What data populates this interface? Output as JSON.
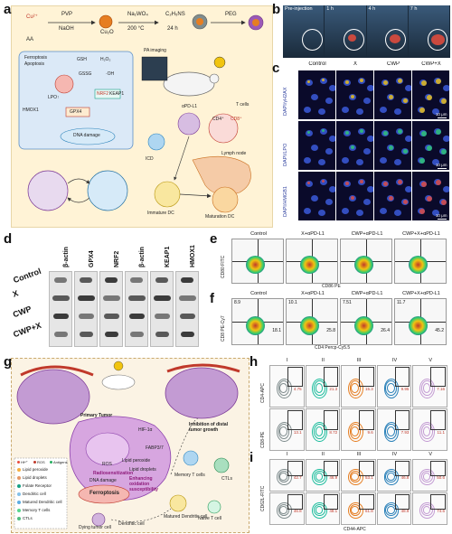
{
  "panels": {
    "a": {
      "letter": "a",
      "synthesis": {
        "cu": "Cu²⁺",
        "aa": "AA",
        "pvp": "PVP",
        "naoh": "NaOH",
        "cu2o": "Cu₂O",
        "nawo": "Na₂WO₄",
        "temp": "200 °C",
        "time": "24 h",
        "product": "C₂H₅NS",
        "peg": "PEG"
      },
      "pathway": {
        "ferro": "Ferroptosis",
        "apop": "Apoptosis",
        "gsh": "GSH",
        "h2o2": "H₂O₂",
        "gssg": "GSSG",
        "oh": "·OH",
        "lpo": "LPO↑",
        "hmox": "HMOX1",
        "nrf2": "NRF2",
        "keap": "KEAP1",
        "gpx4": "GPX4",
        "dna": "DNA damage"
      },
      "labels": {
        "pa": "PA imaging",
        "apdl1": "αPD-L1",
        "icd": "ICD",
        "tcells": "T cells",
        "ln": "Lymph node",
        "cd4": "CD4⁺",
        "cd8": "CD8⁺",
        "imm": "Immature DC",
        "mat": "Maturation DC",
        "naive": "Naive T cell"
      }
    },
    "b": {
      "letter": "b",
      "times": [
        "Pre-injection",
        "1 h",
        "4 h",
        "7 h"
      ]
    },
    "c": {
      "letter": "c",
      "cols": [
        "Control",
        "X",
        "CWP",
        "CWP+X"
      ],
      "rows": [
        "DAPI/γH2AX",
        "DAPI/LPO",
        "DAPI/HMGB1"
      ],
      "scale": "10 μm"
    },
    "d": {
      "letter": "d",
      "proteins": [
        "β-actin",
        "GPX4",
        "NRF2",
        "β-actin",
        "KEAP1",
        "HMOX1"
      ],
      "groups": [
        "Control",
        "X",
        "CWP",
        "CWP+X"
      ]
    },
    "e": {
      "letter": "e",
      "groups": [
        "Control",
        "X+αPD-L1",
        "CWP+αPD-L1",
        "CWP+X+αPD-L1"
      ],
      "ylabel": "CD80 FITC",
      "xlabel": "CD86 PE"
    },
    "f": {
      "letter": "f",
      "groups": [
        "Control",
        "X+αPD-L1",
        "CWP+αPD-L1",
        "CWP+X+αPD-L1"
      ],
      "ylabel": "CD8 PE-Cy7",
      "xlabel": "CD4 Percp-Cy5.5",
      "q_upper": [
        "8.9",
        "10.1",
        "7.51",
        "11.7"
      ],
      "q_lower": [
        "18.1",
        "25.8",
        "26.4",
        "45.2"
      ]
    },
    "g": {
      "letter": "g",
      "labels": {
        "primary": "Primary Tumor",
        "inhibit": "Inhibition of distal tumor growth",
        "radio": "Radiosensitization",
        "enh": "Enhancing oxidation susceptibility",
        "dna": "DNA damage",
        "ros": "ROS",
        "lp": "Lipid peroxide",
        "ld": "Lipid droplets",
        "ferro": "Ferroptosis",
        "hif": "HIF-1α",
        "fabp": "FABP3/7",
        "mem": "Memory T cells",
        "ctl": "CTLs",
        "mdc": "Matured Dendritic cell",
        "naive": "Naive T cell",
        "dc": "Dendritic cell",
        "dying": "Dying tumor cell"
      },
      "legend": [
        "Lipid peroxide",
        "Lipid droplets",
        "Folate Receptor",
        "Dendritic cell",
        "Matured Dendritic cell",
        "Memory T cells",
        "CTLs"
      ],
      "legend_top": [
        "Hf⁴⁺",
        "ROS",
        "Antigens"
      ]
    },
    "h": {
      "letter": "h",
      "cols": [
        "I",
        "II",
        "III",
        "IV",
        "V"
      ],
      "row_labels": [
        "CD4-APC",
        "CD8-PE"
      ],
      "values": [
        "4.75",
        "21.3",
        "15.3",
        "9.95",
        "7.16",
        "13.1",
        "8.72",
        "9.6",
        "7.93",
        "11.1"
      ]
    },
    "i": {
      "letter": "i",
      "cols": [
        "I",
        "II",
        "III",
        "IV",
        "V"
      ],
      "ylabel": "CD62L-FITC",
      "xlabel": "CD44-APC",
      "values": [
        "42.7",
        "46.9",
        "53.1",
        "46.8",
        "50.6",
        "46.8",
        "48.1",
        "61.8",
        "48.9",
        "74.6"
      ]
    }
  },
  "colors": {
    "panel_a_bg": "#fff3d6",
    "panel_g_bg": "#fbf3e4",
    "microscopy_bg": "#0a0a2a",
    "flow_hot": "#c0392b",
    "flow_cool": "#2c3e9e"
  }
}
